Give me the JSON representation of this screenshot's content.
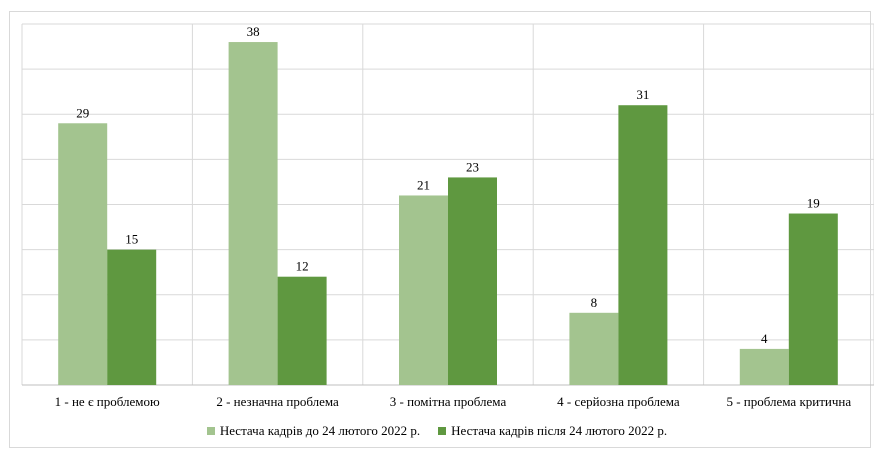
{
  "chart_data": {
    "type": "bar",
    "categories": [
      "1 - не є проблемою",
      "2 - незначна проблема",
      "3 - помітна проблема",
      "4 - серйозна проблема",
      "5 - проблема критична"
    ],
    "series": [
      {
        "name": "Нестача кадрів до 24 лютого 2022 р.",
        "values": [
          29,
          38,
          21,
          8,
          4
        ],
        "color": "#a3c48f"
      },
      {
        "name": "Нестача кадрів після 24 лютого 2022 р.",
        "values": [
          15,
          12,
          23,
          31,
          19
        ],
        "color": "#5f9840"
      }
    ],
    "ylim": [
      0,
      40
    ],
    "grid": true,
    "legend_position": "bottom",
    "title": "",
    "xlabel": "",
    "ylabel": ""
  }
}
